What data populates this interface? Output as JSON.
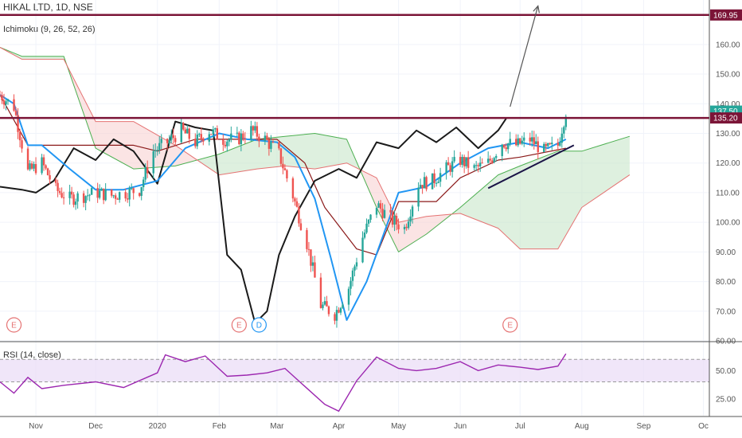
{
  "symbol": {
    "title": "HIKAL LTD, 1D, NSE"
  },
  "indicators": {
    "ichimoku": "Ichimoku (9, 26, 52, 26)",
    "rsi": "RSI (14, close)"
  },
  "colors": {
    "candle_up": "#26a69a",
    "candle_down": "#ef5350",
    "conversion_line": "#2196f3",
    "base_line": "#8b1a1a",
    "lagging_span": "#1a1a1a",
    "cloud_bull": "#c8e6c9",
    "cloud_bear": "#f8d2d2",
    "horizontal_level": "#7b1437",
    "trendline": "#1a1446",
    "rsi_line": "#9c27b0",
    "rsi_band": "#e9dcf7"
  },
  "price_tags": [
    {
      "label": "169.95",
      "value": 169.95,
      "color": "#7b1437"
    },
    {
      "label": "137.50",
      "value": 137.5,
      "color": "#26a69a"
    },
    {
      "label": "135.20",
      "value": 135.2,
      "color": "#7b1437"
    }
  ],
  "events": [
    {
      "label": "E",
      "date": "2019-10-21",
      "kind": "earnings"
    },
    {
      "label": "E",
      "date": "2020-02-11",
      "kind": "earnings"
    },
    {
      "label": "D",
      "date": "2020-02-21",
      "kind": "dividend"
    },
    {
      "label": "E",
      "date": "2020-06-26",
      "kind": "earnings"
    }
  ],
  "chart_data": [
    {
      "type": "candlestick",
      "title": "HIKAL LTD, 1D, NSE",
      "x_axis": {
        "tick_labels": [
          "Nov",
          "Dec",
          "2020",
          "Feb",
          "Mar",
          "Apr",
          "May",
          "Jun",
          "Jul",
          "Aug",
          "Sep",
          "Oc"
        ],
        "tick_dates": [
          "2019-11-01",
          "2019-12-01",
          "2020-01-01",
          "2020-02-01",
          "2020-03-01",
          "2020-04-01",
          "2020-05-01",
          "2020-06-01",
          "2020-07-01",
          "2020-08-01",
          "2020-09-01",
          "2020-10-01"
        ]
      },
      "y_axis": {
        "range": [
          60,
          175
        ],
        "tick_labels": [
          "60.00",
          "70.00",
          "80.00",
          "90.00",
          "100.00",
          "110.00",
          "120.00",
          "130.00",
          "140.00",
          "150.00",
          "160.00"
        ],
        "ticks": [
          60,
          70,
          80,
          90,
          100,
          110,
          120,
          130,
          140,
          150,
          160
        ]
      },
      "series": [
        {
          "kind": "close",
          "dates": [
            "2019-10-14",
            "2019-10-21",
            "2019-10-28",
            "2019-11-04",
            "2019-11-11",
            "2019-11-18",
            "2019-11-25",
            "2019-12-02",
            "2019-12-09",
            "2019-12-16",
            "2019-12-23",
            "2019-12-30",
            "2020-01-06",
            "2020-01-13",
            "2020-01-20",
            "2020-01-27",
            "2020-02-03",
            "2020-02-10",
            "2020-02-17",
            "2020-02-24",
            "2020-03-02",
            "2020-03-09",
            "2020-03-16",
            "2020-03-23",
            "2020-03-30",
            "2020-04-06",
            "2020-04-13",
            "2020-04-20",
            "2020-04-27",
            "2020-05-04",
            "2020-05-11",
            "2020-05-18",
            "2020-05-25",
            "2020-06-01",
            "2020-06-08",
            "2020-06-15",
            "2020-06-22",
            "2020-06-29",
            "2020-07-06",
            "2020-07-13",
            "2020-07-20",
            "2020-07-24"
          ],
          "values": [
            143,
            139,
            117,
            120,
            111,
            108,
            109,
            110,
            109,
            110,
            111,
            124,
            127,
            131,
            127,
            131,
            128,
            128,
            131,
            128,
            123,
            109,
            93,
            72,
            69,
            78,
            95,
            106,
            101,
            98,
            113,
            114,
            118,
            121,
            118,
            120,
            127,
            126,
            128,
            124,
            126,
            137.5
          ]
        },
        {
          "kind": "conversion_line",
          "dates": [
            "2019-10-14",
            "2019-10-21",
            "2019-10-28",
            "2019-11-04",
            "2019-11-18",
            "2019-12-01",
            "2019-12-15",
            "2020-01-01",
            "2020-01-15",
            "2020-02-01",
            "2020-02-15",
            "2020-03-01",
            "2020-03-10",
            "2020-03-20",
            "2020-03-28",
            "2020-04-05",
            "2020-04-15",
            "2020-05-01",
            "2020-05-15",
            "2020-06-01",
            "2020-06-15",
            "2020-07-01",
            "2020-07-15",
            "2020-07-24"
          ],
          "values": [
            143,
            140,
            126,
            126,
            118,
            111,
            111,
            114,
            125,
            130,
            128,
            127,
            122,
            108,
            88,
            67,
            80,
            110,
            112,
            120,
            125,
            127,
            125,
            128
          ]
        },
        {
          "kind": "base_line",
          "dates": [
            "2019-10-14",
            "2019-10-28",
            "2019-11-20",
            "2019-12-20",
            "2020-01-01",
            "2020-01-20",
            "2020-02-10",
            "2020-03-01",
            "2020-03-15",
            "2020-03-25",
            "2020-04-10",
            "2020-04-20",
            "2020-05-01",
            "2020-05-20",
            "2020-06-01",
            "2020-06-20",
            "2020-07-01",
            "2020-07-24"
          ],
          "values": [
            143,
            126,
            126,
            126,
            124,
            128,
            128,
            128,
            120,
            105,
            91,
            89,
            107,
            107,
            115,
            121,
            122,
            125
          ]
        },
        {
          "kind": "lagging_span",
          "dates": [
            "2019-10-14",
            "2019-10-25",
            "2019-11-01",
            "2019-11-10",
            "2019-11-20",
            "2019-12-01",
            "2019-12-10",
            "2019-12-20",
            "2020-01-01",
            "2020-01-10",
            "2020-01-20",
            "2020-01-29",
            "2020-02-05",
            "2020-02-12",
            "2020-02-19",
            "2020-02-25",
            "2020-03-02",
            "2020-03-10",
            "2020-03-20",
            "2020-04-01",
            "2020-04-10",
            "2020-04-20",
            "2020-05-01",
            "2020-05-10",
            "2020-05-20",
            "2020-05-30",
            "2020-06-10",
            "2020-06-20",
            "2020-06-24"
          ],
          "values": [
            112,
            111,
            110,
            114,
            125,
            121,
            128,
            124,
            113,
            134,
            132,
            131,
            89,
            84,
            66,
            70,
            89,
            102,
            114,
            118,
            115,
            127,
            125,
            131,
            127,
            132,
            125,
            131,
            135
          ]
        },
        {
          "kind": "leading_span_a",
          "dates": [
            "2019-10-14",
            "2019-10-25",
            "2019-11-15",
            "2019-12-01",
            "2019-12-20",
            "2020-01-10",
            "2020-02-01",
            "2020-02-20",
            "2020-03-05",
            "2020-03-20",
            "2020-04-05",
            "2020-04-20",
            "2020-05-01",
            "2020-05-15",
            "2020-06-01",
            "2020-06-20",
            "2020-07-01",
            "2020-07-20",
            "2020-08-01",
            "2020-08-25"
          ],
          "values": [
            159,
            156,
            156,
            125,
            118,
            119,
            123,
            128,
            129,
            130,
            128,
            105,
            90,
            96,
            105,
            116,
            119,
            124,
            124,
            129
          ]
        },
        {
          "kind": "leading_span_b",
          "dates": [
            "2019-10-14",
            "2019-10-25",
            "2019-11-15",
            "2019-12-01",
            "2019-12-20",
            "2020-01-10",
            "2020-02-01",
            "2020-02-20",
            "2020-03-05",
            "2020-03-20",
            "2020-04-05",
            "2020-04-20",
            "2020-05-01",
            "2020-05-15",
            "2020-06-01",
            "2020-06-20",
            "2020-07-01",
            "2020-07-20",
            "2020-08-01",
            "2020-08-25"
          ],
          "values": [
            159,
            155,
            155,
            134,
            134,
            126,
            116,
            118,
            119,
            118,
            120,
            115,
            100,
            102,
            103,
            98,
            91,
            91,
            105,
            116
          ]
        }
      ],
      "horizontal_levels": [
        169.95,
        135.2
      ],
      "drawings": [
        {
          "kind": "trendline",
          "from": {
            "date": "2020-06-15",
            "price": 111.5
          },
          "to": {
            "date": "2020-07-28",
            "price": 126
          }
        },
        {
          "kind": "arrow",
          "from": {
            "date": "2020-06-26",
            "price": 139
          },
          "to": {
            "date": "2020-07-10",
            "price": 173
          }
        }
      ]
    },
    {
      "type": "line",
      "title": "RSI (14, close)",
      "y_axis": {
        "range": [
          10,
          75
        ],
        "tick_labels": [
          "25.00",
          "50.00"
        ],
        "ticks": [
          25,
          50
        ]
      },
      "band": [
        40,
        60
      ],
      "series": [
        {
          "name": "RSI",
          "dates": [
            "2019-10-14",
            "2019-10-21",
            "2019-10-28",
            "2019-11-04",
            "2019-11-15",
            "2019-12-01",
            "2019-12-15",
            "2020-01-01",
            "2020-01-05",
            "2020-01-15",
            "2020-01-25",
            "2020-02-05",
            "2020-02-15",
            "2020-02-25",
            "2020-03-05",
            "2020-03-15",
            "2020-03-25",
            "2020-04-01",
            "2020-04-10",
            "2020-04-20",
            "2020-05-01",
            "2020-05-10",
            "2020-05-20",
            "2020-06-01",
            "2020-06-10",
            "2020-06-20",
            "2020-07-01",
            "2020-07-10",
            "2020-07-20",
            "2020-07-24"
          ],
          "values": [
            40,
            30,
            44,
            34,
            37,
            40,
            35,
            48,
            64,
            58,
            63,
            45,
            46,
            48,
            52,
            36,
            20,
            14,
            41,
            62,
            52,
            50,
            52,
            58,
            50,
            55,
            53,
            51,
            54,
            65
          ]
        }
      ]
    }
  ]
}
